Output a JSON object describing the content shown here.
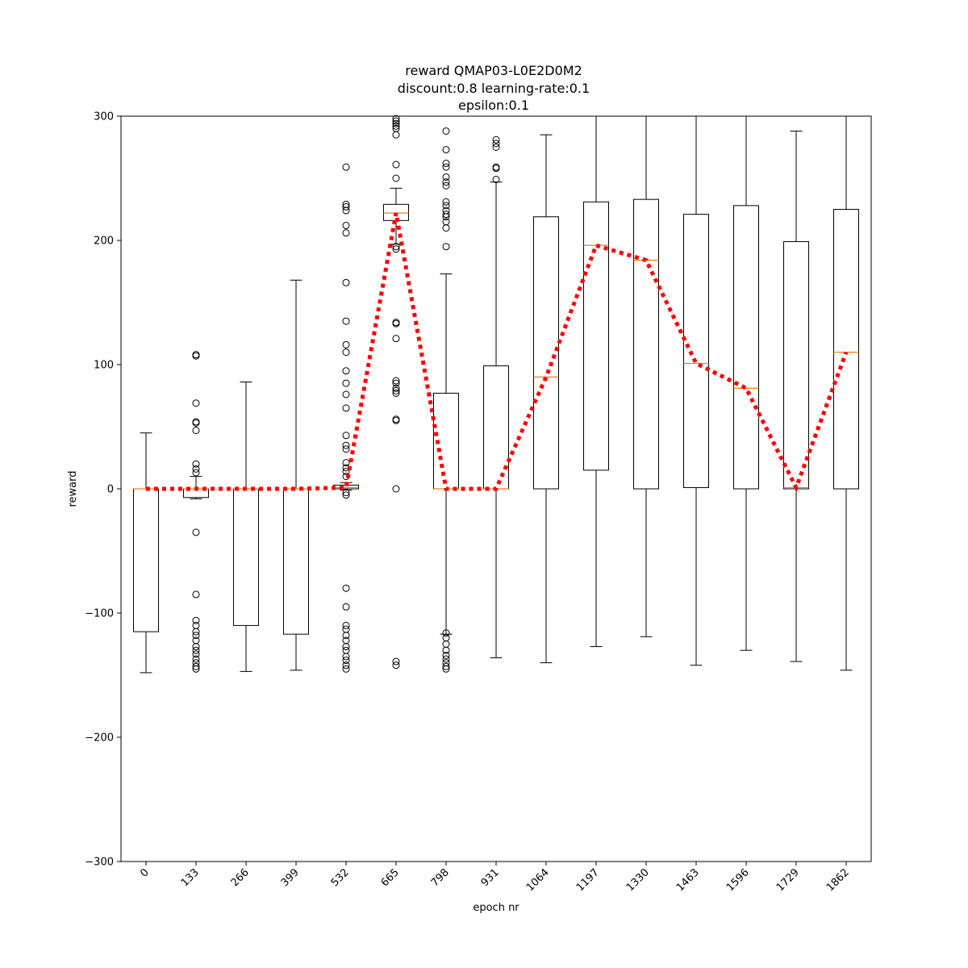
{
  "chart_data": {
    "type": "box",
    "title_lines": [
      "reward QMAP03-L0E2D0M2",
      "discount:0.8 learning-rate:0.1",
      "epsilon:0.1"
    ],
    "xlabel": "epoch nr",
    "ylabel": "reward",
    "ylim": [
      -300,
      300
    ],
    "yticks": [
      -300,
      -200,
      -100,
      0,
      100,
      200,
      300
    ],
    "ytick_labels": [
      "−300",
      "−200",
      "−100",
      "0",
      "100",
      "200",
      "300"
    ],
    "categories": [
      "0",
      "133",
      "266",
      "399",
      "532",
      "665",
      "798",
      "931",
      "1064",
      "1197",
      "1330",
      "1463",
      "1596",
      "1729",
      "1862"
    ],
    "boxes": [
      {
        "whislo": -148,
        "q1": -115,
        "median": 0,
        "q3": 0,
        "whishi": 45,
        "fliers": []
      },
      {
        "whislo": -8,
        "q1": -7,
        "median": 0,
        "q3": 0,
        "whishi": 10,
        "fliers": [
          108,
          107,
          69,
          54,
          53,
          47,
          20,
          16,
          13,
          -35,
          -85,
          -106,
          -110,
          -115,
          -118,
          -122,
          -127,
          -130,
          -133,
          -137,
          -140,
          -143,
          -145
        ]
      },
      {
        "whislo": -147,
        "q1": -110,
        "median": 0,
        "q3": 0,
        "whishi": 86,
        "fliers": []
      },
      {
        "whislo": -146,
        "q1": -117,
        "median": 0,
        "q3": 0,
        "whishi": 168,
        "fliers": []
      },
      {
        "whislo": -1,
        "q1": 0,
        "median": 1,
        "q3": 3,
        "whishi": 5,
        "fliers": [
          259,
          229,
          227,
          224,
          212,
          206,
          166,
          135,
          116,
          110,
          95,
          85,
          76,
          65,
          43,
          35,
          32,
          21,
          17,
          14,
          10,
          -3,
          -5,
          -80,
          -95,
          -110,
          -113,
          -118,
          -122,
          -127,
          -130,
          -135,
          -138,
          -142,
          -145
        ]
      },
      {
        "whislo": 197,
        "q1": 216,
        "median": 222,
        "q3": 229,
        "whishi": 242,
        "fliers": [
          298,
          296,
          294,
          292,
          290,
          285,
          261,
          250,
          195,
          193,
          134,
          133,
          121,
          87,
          85,
          81,
          79,
          77,
          56,
          55,
          0,
          -139,
          -142
        ]
      },
      {
        "whislo": -117,
        "q1": 0,
        "median": 0,
        "q3": 77,
        "whishi": 173,
        "fliers": [
          302,
          288,
          273,
          262,
          259,
          251,
          247,
          244,
          231,
          228,
          224,
          221,
          219,
          215,
          210,
          195,
          -116,
          -120,
          -125,
          -130,
          -134,
          -137,
          -140,
          -143,
          -145
        ]
      },
      {
        "whislo": -136,
        "q1": 0,
        "median": 0,
        "q3": 99,
        "whishi": 247,
        "fliers": [
          281,
          278,
          275,
          259,
          258,
          249
        ]
      },
      {
        "whislo": -140,
        "q1": 0,
        "median": 90,
        "q3": 219,
        "whishi": 285,
        "fliers": []
      },
      {
        "whislo": -127,
        "q1": 15,
        "median": 196,
        "q3": 231,
        "whishi": 310,
        "fliers": []
      },
      {
        "whislo": -119,
        "q1": 0,
        "median": 184,
        "q3": 233,
        "whishi": 310,
        "fliers": []
      },
      {
        "whislo": -142,
        "q1": 1,
        "median": 101,
        "q3": 221,
        "whishi": 310,
        "fliers": []
      },
      {
        "whislo": -130,
        "q1": 0,
        "median": 81,
        "q3": 228,
        "whishi": 310,
        "fliers": []
      },
      {
        "whislo": -139,
        "q1": 0,
        "median": 1,
        "q3": 199,
        "whishi": 288,
        "fliers": []
      },
      {
        "whislo": -146,
        "q1": 0,
        "median": 110,
        "q3": 225,
        "whishi": 310,
        "fliers": []
      }
    ],
    "median_line": {
      "style": "dotted",
      "values": [
        0,
        0,
        0,
        0,
        1,
        222,
        0,
        0,
        90,
        196,
        184,
        101,
        81,
        1,
        110
      ]
    },
    "colors": {
      "box": "#000000",
      "median": "#ff7f0e",
      "median_line": "#ff0000",
      "background": "#ffffff"
    },
    "grid": false,
    "legend": "none"
  }
}
